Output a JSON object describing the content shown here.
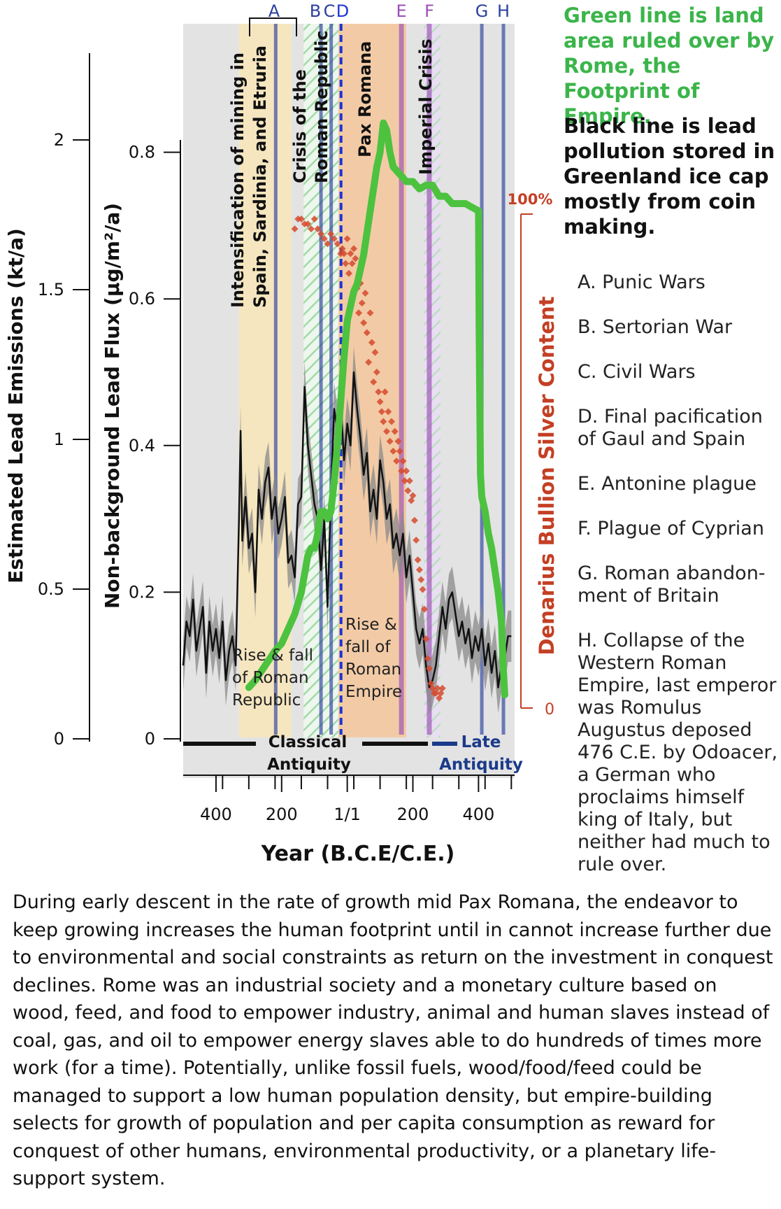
{
  "chart_data": {
    "type": "line",
    "xlabel": "Year (B.C.E/C.E.)",
    "ylabel_left_outer": "Estimated Lead Emissions (kt/a)",
    "ylabel_left_inner": "Non-background Lead Flux (µg/m²/a)",
    "ylabel_right": "Denarius Bullion Silver Content",
    "xlim": [
      -500,
      510
    ],
    "x_ticks": [
      {
        "value": -400,
        "label": "400"
      },
      {
        "value": -200,
        "label": "200"
      },
      {
        "value": 0,
        "label": "1/1"
      },
      {
        "value": 200,
        "label": "200"
      },
      {
        "value": 400,
        "label": "400"
      }
    ],
    "y_outer_ticks": [
      {
        "value": 0,
        "label": "0"
      },
      {
        "value": 0.5,
        "label": "0.5"
      },
      {
        "value": 1,
        "label": "1"
      },
      {
        "value": 1.5,
        "label": "1.5"
      },
      {
        "value": 2,
        "label": "2"
      }
    ],
    "y_inner_ticks": [
      {
        "value": 0,
        "label": "0"
      },
      {
        "value": 0.2,
        "label": "0.2"
      },
      {
        "value": 0.4,
        "label": "0.4"
      },
      {
        "value": 0.6,
        "label": "0.6"
      },
      {
        "value": 0.8,
        "label": "0.8"
      }
    ],
    "y_right_ticks": [
      {
        "value": 0,
        "label": "0"
      },
      {
        "value": 100,
        "label": "100%"
      }
    ],
    "periods": [
      {
        "label": "Intensification of mining in Spain, Sardinia, and Etruria",
        "start": -330,
        "end": -170,
        "color": "#f6e6bd"
      },
      {
        "label": "Crisis of the Roman Republic",
        "start": -133,
        "end": -27,
        "color": "#d7efd9"
      },
      {
        "label": "Pax Romana",
        "start": -27,
        "end": 180,
        "color": "#f2c9a2"
      },
      {
        "label": "Imperial Crisis",
        "start": 235,
        "end": 284,
        "color": "#dccbe9"
      }
    ],
    "events": [
      {
        "label": "A",
        "x": -218,
        "color": "#2b3f9e"
      },
      {
        "label": "B",
        "x": -80,
        "color": "#2b3f9e"
      },
      {
        "label": "C",
        "x": -49,
        "color": "#2b3f9e"
      },
      {
        "label": "D",
        "x": -19,
        "color": "#1f33d6"
      },
      {
        "label": "E",
        "x": 165,
        "color": "#9b4fb5"
      },
      {
        "label": "F",
        "x": 250,
        "color": "#9b4fb5"
      },
      {
        "label": "G",
        "x": 410,
        "color": "#2b3f9e"
      },
      {
        "label": "H",
        "x": 476,
        "color": "#2b3f9e"
      }
    ],
    "period_notes": [
      {
        "label": "Rise & fall of Roman Republic",
        "x": -270
      },
      {
        "label": "Rise & fall of Roman Empire",
        "x": 75
      }
    ],
    "eras": [
      {
        "label": "Classical Antiquity",
        "start": -470,
        "end": 250
      },
      {
        "label": "Late Antiquity",
        "start": 255,
        "end": 500
      }
    ],
    "series": [
      {
        "name": "Green line is land area ruled over by Rome, the Footprint of Empire.",
        "color": "#4cc23f",
        "axis": "inner",
        "x": [
          -300,
          -280,
          -250,
          -220,
          -200,
          -180,
          -160,
          -140,
          -120,
          -110,
          -100,
          -95,
          -90,
          -85,
          -80,
          -75,
          -70,
          -60,
          -50,
          -40,
          -30,
          -20,
          -10,
          0,
          10,
          20,
          30,
          40,
          50,
          60,
          70,
          80,
          90,
          100,
          110,
          120,
          130,
          140,
          160,
          180,
          200,
          220,
          240,
          260,
          280,
          300,
          320,
          340,
          360,
          380,
          400,
          402,
          404,
          406,
          410,
          420,
          430,
          440,
          450,
          460,
          470,
          475,
          480
        ],
        "y": [
          0.07,
          0.08,
          0.1,
          0.12,
          0.13,
          0.15,
          0.17,
          0.2,
          0.25,
          0.26,
          0.26,
          0.27,
          0.28,
          0.3,
          0.31,
          0.31,
          0.31,
          0.3,
          0.31,
          0.35,
          0.4,
          0.46,
          0.52,
          0.57,
          0.59,
          0.61,
          0.62,
          0.64,
          0.66,
          0.69,
          0.72,
          0.75,
          0.78,
          0.8,
          0.84,
          0.83,
          0.8,
          0.78,
          0.77,
          0.76,
          0.76,
          0.75,
          0.755,
          0.755,
          0.74,
          0.74,
          0.73,
          0.73,
          0.73,
          0.725,
          0.72,
          0.56,
          0.45,
          0.36,
          0.33,
          0.31,
          0.28,
          0.26,
          0.23,
          0.2,
          0.16,
          0.1,
          0.06
        ]
      },
      {
        "name": "Black line is lead pollution stored in Greenland ice cap mostly from coin making.",
        "color": "#111111",
        "axis": "inner",
        "x": [
          -500,
          -490,
          -480,
          -470,
          -460,
          -450,
          -440,
          -430,
          -420,
          -410,
          -400,
          -390,
          -380,
          -370,
          -360,
          -350,
          -340,
          -330,
          -325,
          -320,
          -310,
          -300,
          -290,
          -280,
          -270,
          -260,
          -250,
          -240,
          -230,
          -220,
          -210,
          -200,
          -190,
          -180,
          -170,
          -160,
          -150,
          -140,
          -130,
          -120,
          -110,
          -100,
          -90,
          -80,
          -70,
          -60,
          -50,
          -40,
          -30,
          -20,
          -10,
          0,
          10,
          20,
          30,
          40,
          50,
          60,
          70,
          80,
          90,
          100,
          110,
          120,
          130,
          140,
          150,
          160,
          170,
          180,
          190,
          200,
          210,
          220,
          230,
          240,
          250,
          260,
          270,
          280,
          290,
          300,
          310,
          320,
          330,
          340,
          350,
          360,
          370,
          380,
          390,
          400,
          410,
          420,
          430,
          440,
          450,
          460,
          470,
          480,
          490,
          500
        ],
        "y": [
          0.1,
          0.16,
          0.14,
          0.19,
          0.12,
          0.15,
          0.18,
          0.09,
          0.16,
          0.12,
          0.15,
          0.11,
          0.16,
          0.08,
          0.12,
          0.14,
          0.1,
          0.3,
          0.42,
          0.27,
          0.33,
          0.26,
          0.28,
          0.2,
          0.34,
          0.3,
          0.35,
          0.37,
          0.3,
          0.33,
          0.28,
          0.3,
          0.33,
          0.24,
          0.25,
          0.22,
          0.32,
          0.33,
          0.48,
          0.4,
          0.36,
          0.32,
          0.3,
          0.23,
          0.3,
          0.18,
          0.33,
          0.45,
          0.42,
          0.46,
          0.38,
          0.43,
          0.4,
          0.5,
          0.45,
          0.41,
          0.36,
          0.39,
          0.31,
          0.34,
          0.3,
          0.38,
          0.35,
          0.3,
          0.32,
          0.26,
          0.28,
          0.25,
          0.28,
          0.22,
          0.25,
          0.2,
          0.15,
          0.13,
          0.15,
          0.1,
          0.07,
          0.08,
          0.1,
          0.14,
          0.18,
          0.15,
          0.19,
          0.2,
          0.17,
          0.14,
          0.16,
          0.13,
          0.15,
          0.11,
          0.14,
          0.12,
          0.15,
          0.1,
          0.13,
          0.09,
          0.12,
          0.07,
          0.1,
          0.11,
          0.14,
          0.14
        ]
      },
      {
        "name": "Denarius Bullion Silver Content",
        "color": "#d64a2e",
        "axis": "right",
        "type": "scatter",
        "x": [
          -160,
          -150,
          -140,
          -130,
          -120,
          -110,
          -100,
          -90,
          -80,
          -70,
          -60,
          -50,
          -40,
          -30,
          -20,
          -15,
          -10,
          -5,
          0,
          5,
          10,
          15,
          20,
          25,
          30,
          35,
          40,
          45,
          50,
          55,
          60,
          65,
          70,
          75,
          80,
          85,
          90,
          95,
          100,
          105,
          110,
          115,
          120,
          125,
          130,
          135,
          140,
          145,
          150,
          155,
          160,
          165,
          170,
          175,
          180,
          185,
          190,
          195,
          200,
          205,
          210,
          215,
          220,
          225,
          230,
          235,
          240,
          245,
          250,
          255,
          260,
          265,
          270,
          275,
          280,
          285,
          290
        ],
        "y": [
          97,
          99,
          99,
          98,
          98,
          97,
          99,
          97,
          96,
          95,
          94,
          96,
          95,
          94,
          92,
          93,
          92,
          90,
          95,
          88,
          92,
          90,
          93,
          91,
          85,
          80,
          86,
          82,
          78,
          84,
          76,
          70,
          80,
          74,
          66,
          72,
          68,
          64,
          62,
          60,
          58,
          64,
          56,
          60,
          54,
          58,
          52,
          56,
          50,
          54,
          52,
          48,
          50,
          46,
          48,
          44,
          46,
          42,
          43,
          38,
          34,
          30,
          28,
          26,
          24,
          20,
          14,
          10,
          8,
          5,
          4,
          3,
          3,
          4,
          2,
          3,
          4
        ]
      }
    ]
  },
  "notes": {
    "green": "Green line is land area ruled over by Rome, the Footprint of Empire.",
    "black": "Black line is lead pollution stored in Greenland ice cap mostly from coin making."
  },
  "event_list": [
    "A. Punic Wars",
    "B. Sertorian War",
    "C. Civil Wars",
    "D. Final pacification of Gaul and Spain",
    "E. Antonine plague",
    "F. Plague of Cyprian",
    "G. Roman abandon-ment of Britain",
    "H. Collapse of the Western Roman Empire, last emperor was Romulus Augustus deposed 476 C.E. by Odoacer, a German who proclaims himself king of Italy, but neither had much to rule over."
  ],
  "caption": "During early descent in the rate of growth mid Pax Romana, the endeavor to keep growing increases the human footprint until in cannot increase further due to environmental and social constraints as return on the investment in conquest declines. Rome was an industrial society and a monetary culture based on wood, feed, and food to empower industry, animal and human slaves instead of coal, gas, and  oil to empower energy slaves able to do hundreds of times more work (for a time). Potentially, unlike fossil fuels, wood/food/feed could be managed to support a low human population density, but empire-building selects for growth of population and per capita consumption as reward for conquest of other humans, environmental productivity, or a planetary life-support system."
}
